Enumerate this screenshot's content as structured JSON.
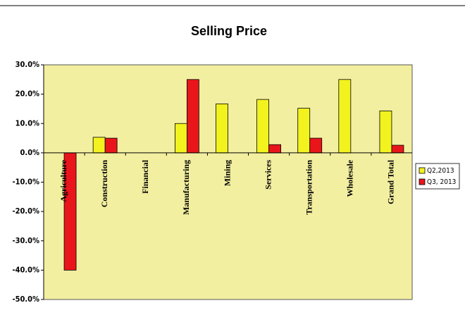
{
  "chart_data": {
    "type": "bar",
    "title": "Selling Price",
    "categories": [
      "Agriculture",
      "Construction",
      "Financial",
      "Manufacturing",
      "Mining",
      "Services",
      "Transportation",
      "Wholesale",
      "Grand Total"
    ],
    "series": [
      {
        "name": "Q2,2013",
        "color": "#f2f21f",
        "values": [
          0,
          5.3,
          0,
          10,
          16.7,
          18.2,
          15.2,
          25,
          14.3
        ]
      },
      {
        "name": "Q3, 2013",
        "color": "#e8161b",
        "values": [
          -40,
          5,
          0,
          25,
          0,
          2.8,
          5,
          0,
          2.6
        ]
      }
    ],
    "ylim": [
      -50,
      30
    ],
    "yticks": [
      {
        "value": -50,
        "label": "-50.0%"
      },
      {
        "value": -40,
        "label": "-40.0%"
      },
      {
        "value": -30,
        "label": "-30.0%"
      },
      {
        "value": -20,
        "label": "-20.0%"
      },
      {
        "value": -10,
        "label": "-10.0%"
      },
      {
        "value": 0,
        "label": "0.0%"
      },
      {
        "value": 10,
        "label": "10.0%"
      },
      {
        "value": 20,
        "label": "20.0%"
      },
      {
        "value": 30,
        "label": "30.0%"
      }
    ],
    "plot_background": "#f3efa0",
    "legend": "right"
  }
}
